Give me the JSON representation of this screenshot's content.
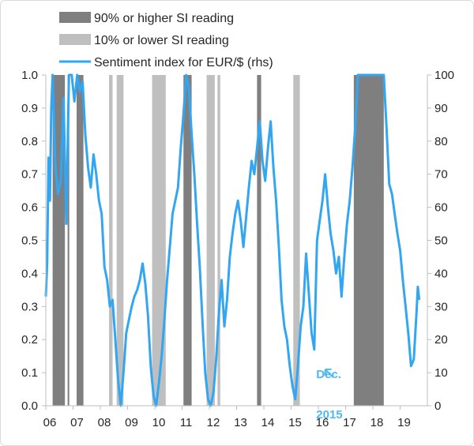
{
  "chart_data": {
    "type": "line",
    "title": "",
    "legend": {
      "placement": "top-left",
      "entries": [
        {
          "key": "high",
          "label": "90% or higher SI reading",
          "color": "#7f7f7f",
          "marker": "box"
        },
        {
          "key": "low",
          "label": "10% or lower SI reading",
          "color": "#bfbfbf",
          "marker": "box"
        },
        {
          "key": "line",
          "label": "Sentiment index for EUR/$ (rhs)",
          "color": "#33a6f2",
          "marker": "line"
        }
      ]
    },
    "x_axis": {
      "range": [
        2006.0,
        2020.0
      ],
      "ticks": [
        {
          "value": 2006,
          "label": "06"
        },
        {
          "value": 2007,
          "label": "07"
        },
        {
          "value": 2008,
          "label": "08"
        },
        {
          "value": 2009,
          "label": "09"
        },
        {
          "value": 2010,
          "label": "10"
        },
        {
          "value": 2011,
          "label": "11"
        },
        {
          "value": 2012,
          "label": "12"
        },
        {
          "value": 2013,
          "label": "13"
        },
        {
          "value": 2014,
          "label": "14"
        },
        {
          "value": 2015,
          "label": "15"
        },
        {
          "value": 2016,
          "label": "16"
        },
        {
          "value": 2017,
          "label": "17"
        },
        {
          "value": 2018,
          "label": "18"
        },
        {
          "value": 2019,
          "label": "19"
        }
      ]
    },
    "y_left": {
      "range": [
        0,
        1
      ],
      "ticks": [
        {
          "value": 0.0,
          "label": "0.0"
        },
        {
          "value": 0.1,
          "label": "0.1"
        },
        {
          "value": 0.2,
          "label": "0.2"
        },
        {
          "value": 0.3,
          "label": "0.3"
        },
        {
          "value": 0.4,
          "label": "0.4"
        },
        {
          "value": 0.5,
          "label": "0.5"
        },
        {
          "value": 0.6,
          "label": "0.6"
        },
        {
          "value": 0.7,
          "label": "0.7"
        },
        {
          "value": 0.8,
          "label": "0.8"
        },
        {
          "value": 0.9,
          "label": "0.9"
        },
        {
          "value": 1.0,
          "label": "1.0"
        }
      ]
    },
    "y_right": {
      "range": [
        0,
        100
      ],
      "ticks": [
        {
          "value": 0,
          "label": "0"
        },
        {
          "value": 10,
          "label": "10"
        },
        {
          "value": 20,
          "label": "20"
        },
        {
          "value": 30,
          "label": "30"
        },
        {
          "value": 40,
          "label": "40"
        },
        {
          "value": 50,
          "label": "50"
        },
        {
          "value": 60,
          "label": "60"
        },
        {
          "value": 70,
          "label": "70"
        },
        {
          "value": 80,
          "label": "80"
        },
        {
          "value": 90,
          "label": "90"
        },
        {
          "value": 100,
          "label": "100"
        }
      ]
    },
    "grid": false,
    "high_periods": [
      {
        "start": 2006.25,
        "end": 2006.7
      },
      {
        "start": 2006.8,
        "end": 2006.86
      },
      {
        "start": 2007.13,
        "end": 2007.38
      },
      {
        "start": 2011.05,
        "end": 2011.35
      },
      {
        "start": 2013.75,
        "end": 2013.9
      },
      {
        "start": 2017.3,
        "end": 2018.4
      }
    ],
    "low_periods": [
      {
        "start": 2008.32,
        "end": 2008.45
      },
      {
        "start": 2008.6,
        "end": 2008.85
      },
      {
        "start": 2009.9,
        "end": 2010.4
      },
      {
        "start": 2011.9,
        "end": 2012.2
      },
      {
        "start": 2012.3,
        "end": 2012.4
      },
      {
        "start": 2015.08,
        "end": 2015.32
      }
    ],
    "series": [
      {
        "name": "Sentiment index for EUR/$ (rhs)",
        "axis": "right",
        "color": "#33a6f2",
        "points": [
          [
            2006.0,
            33
          ],
          [
            2006.05,
            43
          ],
          [
            2006.1,
            75
          ],
          [
            2006.15,
            62
          ],
          [
            2006.2,
            90
          ],
          [
            2006.25,
            100
          ],
          [
            2006.35,
            72
          ],
          [
            2006.45,
            64
          ],
          [
            2006.55,
            68
          ],
          [
            2006.65,
            93
          ],
          [
            2006.75,
            55
          ],
          [
            2006.85,
            100
          ],
          [
            2006.95,
            100
          ],
          [
            2007.05,
            92
          ],
          [
            2007.15,
            100
          ],
          [
            2007.25,
            95
          ],
          [
            2007.35,
            98
          ],
          [
            2007.45,
            82
          ],
          [
            2007.55,
            72
          ],
          [
            2007.65,
            66
          ],
          [
            2007.75,
            76
          ],
          [
            2007.85,
            70
          ],
          [
            2007.95,
            62
          ],
          [
            2008.05,
            58
          ],
          [
            2008.15,
            42
          ],
          [
            2008.25,
            38
          ],
          [
            2008.35,
            30
          ],
          [
            2008.45,
            32
          ],
          [
            2008.55,
            20
          ],
          [
            2008.65,
            8
          ],
          [
            2008.75,
            0
          ],
          [
            2008.85,
            10
          ],
          [
            2008.95,
            22
          ],
          [
            2009.05,
            26
          ],
          [
            2009.15,
            30
          ],
          [
            2009.25,
            33
          ],
          [
            2009.35,
            35
          ],
          [
            2009.45,
            38
          ],
          [
            2009.55,
            43
          ],
          [
            2009.65,
            37
          ],
          [
            2009.75,
            27
          ],
          [
            2009.85,
            12
          ],
          [
            2009.95,
            3
          ],
          [
            2010.05,
            0
          ],
          [
            2010.15,
            7
          ],
          [
            2010.25,
            15
          ],
          [
            2010.35,
            26
          ],
          [
            2010.45,
            38
          ],
          [
            2010.55,
            48
          ],
          [
            2010.65,
            58
          ],
          [
            2010.75,
            62
          ],
          [
            2010.85,
            66
          ],
          [
            2010.95,
            78
          ],
          [
            2011.05,
            88
          ],
          [
            2011.15,
            100
          ],
          [
            2011.25,
            96
          ],
          [
            2011.35,
            82
          ],
          [
            2011.45,
            70
          ],
          [
            2011.55,
            55
          ],
          [
            2011.65,
            42
          ],
          [
            2011.75,
            25
          ],
          [
            2011.85,
            10
          ],
          [
            2011.95,
            2
          ],
          [
            2012.05,
            0
          ],
          [
            2012.15,
            4
          ],
          [
            2012.25,
            14
          ],
          [
            2012.35,
            28
          ],
          [
            2012.45,
            38
          ],
          [
            2012.55,
            24
          ],
          [
            2012.65,
            32
          ],
          [
            2012.75,
            45
          ],
          [
            2012.85,
            52
          ],
          [
            2012.95,
            58
          ],
          [
            2013.05,
            62
          ],
          [
            2013.15,
            56
          ],
          [
            2013.25,
            48
          ],
          [
            2013.35,
            57
          ],
          [
            2013.45,
            66
          ],
          [
            2013.55,
            74
          ],
          [
            2013.65,
            70
          ],
          [
            2013.75,
            78
          ],
          [
            2013.85,
            86
          ],
          [
            2013.95,
            74
          ],
          [
            2014.05,
            68
          ],
          [
            2014.15,
            78
          ],
          [
            2014.25,
            86
          ],
          [
            2014.35,
            72
          ],
          [
            2014.45,
            62
          ],
          [
            2014.55,
            48
          ],
          [
            2014.65,
            32
          ],
          [
            2014.75,
            24
          ],
          [
            2014.85,
            20
          ],
          [
            2014.95,
            12
          ],
          [
            2015.05,
            6
          ],
          [
            2015.15,
            2
          ],
          [
            2015.25,
            12
          ],
          [
            2015.35,
            24
          ],
          [
            2015.45,
            30
          ],
          [
            2015.55,
            46
          ],
          [
            2015.65,
            34
          ],
          [
            2015.75,
            22
          ],
          [
            2015.85,
            17
          ],
          [
            2015.95,
            50
          ],
          [
            2016.05,
            56
          ],
          [
            2016.15,
            62
          ],
          [
            2016.25,
            70
          ],
          [
            2016.35,
            60
          ],
          [
            2016.45,
            52
          ],
          [
            2016.55,
            47
          ],
          [
            2016.65,
            40
          ],
          [
            2016.75,
            45
          ],
          [
            2016.85,
            33
          ],
          [
            2016.95,
            45
          ],
          [
            2017.05,
            55
          ],
          [
            2017.15,
            62
          ],
          [
            2017.25,
            72
          ],
          [
            2017.35,
            84
          ],
          [
            2017.45,
            100
          ],
          [
            2017.6,
            100
          ],
          [
            2017.8,
            100
          ],
          [
            2018.0,
            100
          ],
          [
            2018.2,
            100
          ],
          [
            2018.4,
            100
          ],
          [
            2018.5,
            84
          ],
          [
            2018.6,
            67
          ],
          [
            2018.7,
            64
          ],
          [
            2018.8,
            58
          ],
          [
            2018.9,
            52
          ],
          [
            2019.0,
            47
          ],
          [
            2019.1,
            38
          ],
          [
            2019.2,
            30
          ],
          [
            2019.3,
            22
          ],
          [
            2019.4,
            12
          ],
          [
            2019.5,
            14
          ],
          [
            2019.6,
            28
          ],
          [
            2019.65,
            36
          ],
          [
            2019.7,
            32
          ]
        ]
      }
    ],
    "annotations": [
      {
        "text": "Dec.",
        "x": 2015.95,
        "y_left": 0.05
      },
      {
        "text": "2015",
        "x": 2015.95,
        "y_left": 0.0
      }
    ]
  },
  "colors": {
    "high": "#7f7f7f",
    "low": "#bfbfbf",
    "line": "#33a6f2",
    "annotation": "#4fb7f5",
    "axis": "#bfbfbf",
    "text": "#262626"
  }
}
